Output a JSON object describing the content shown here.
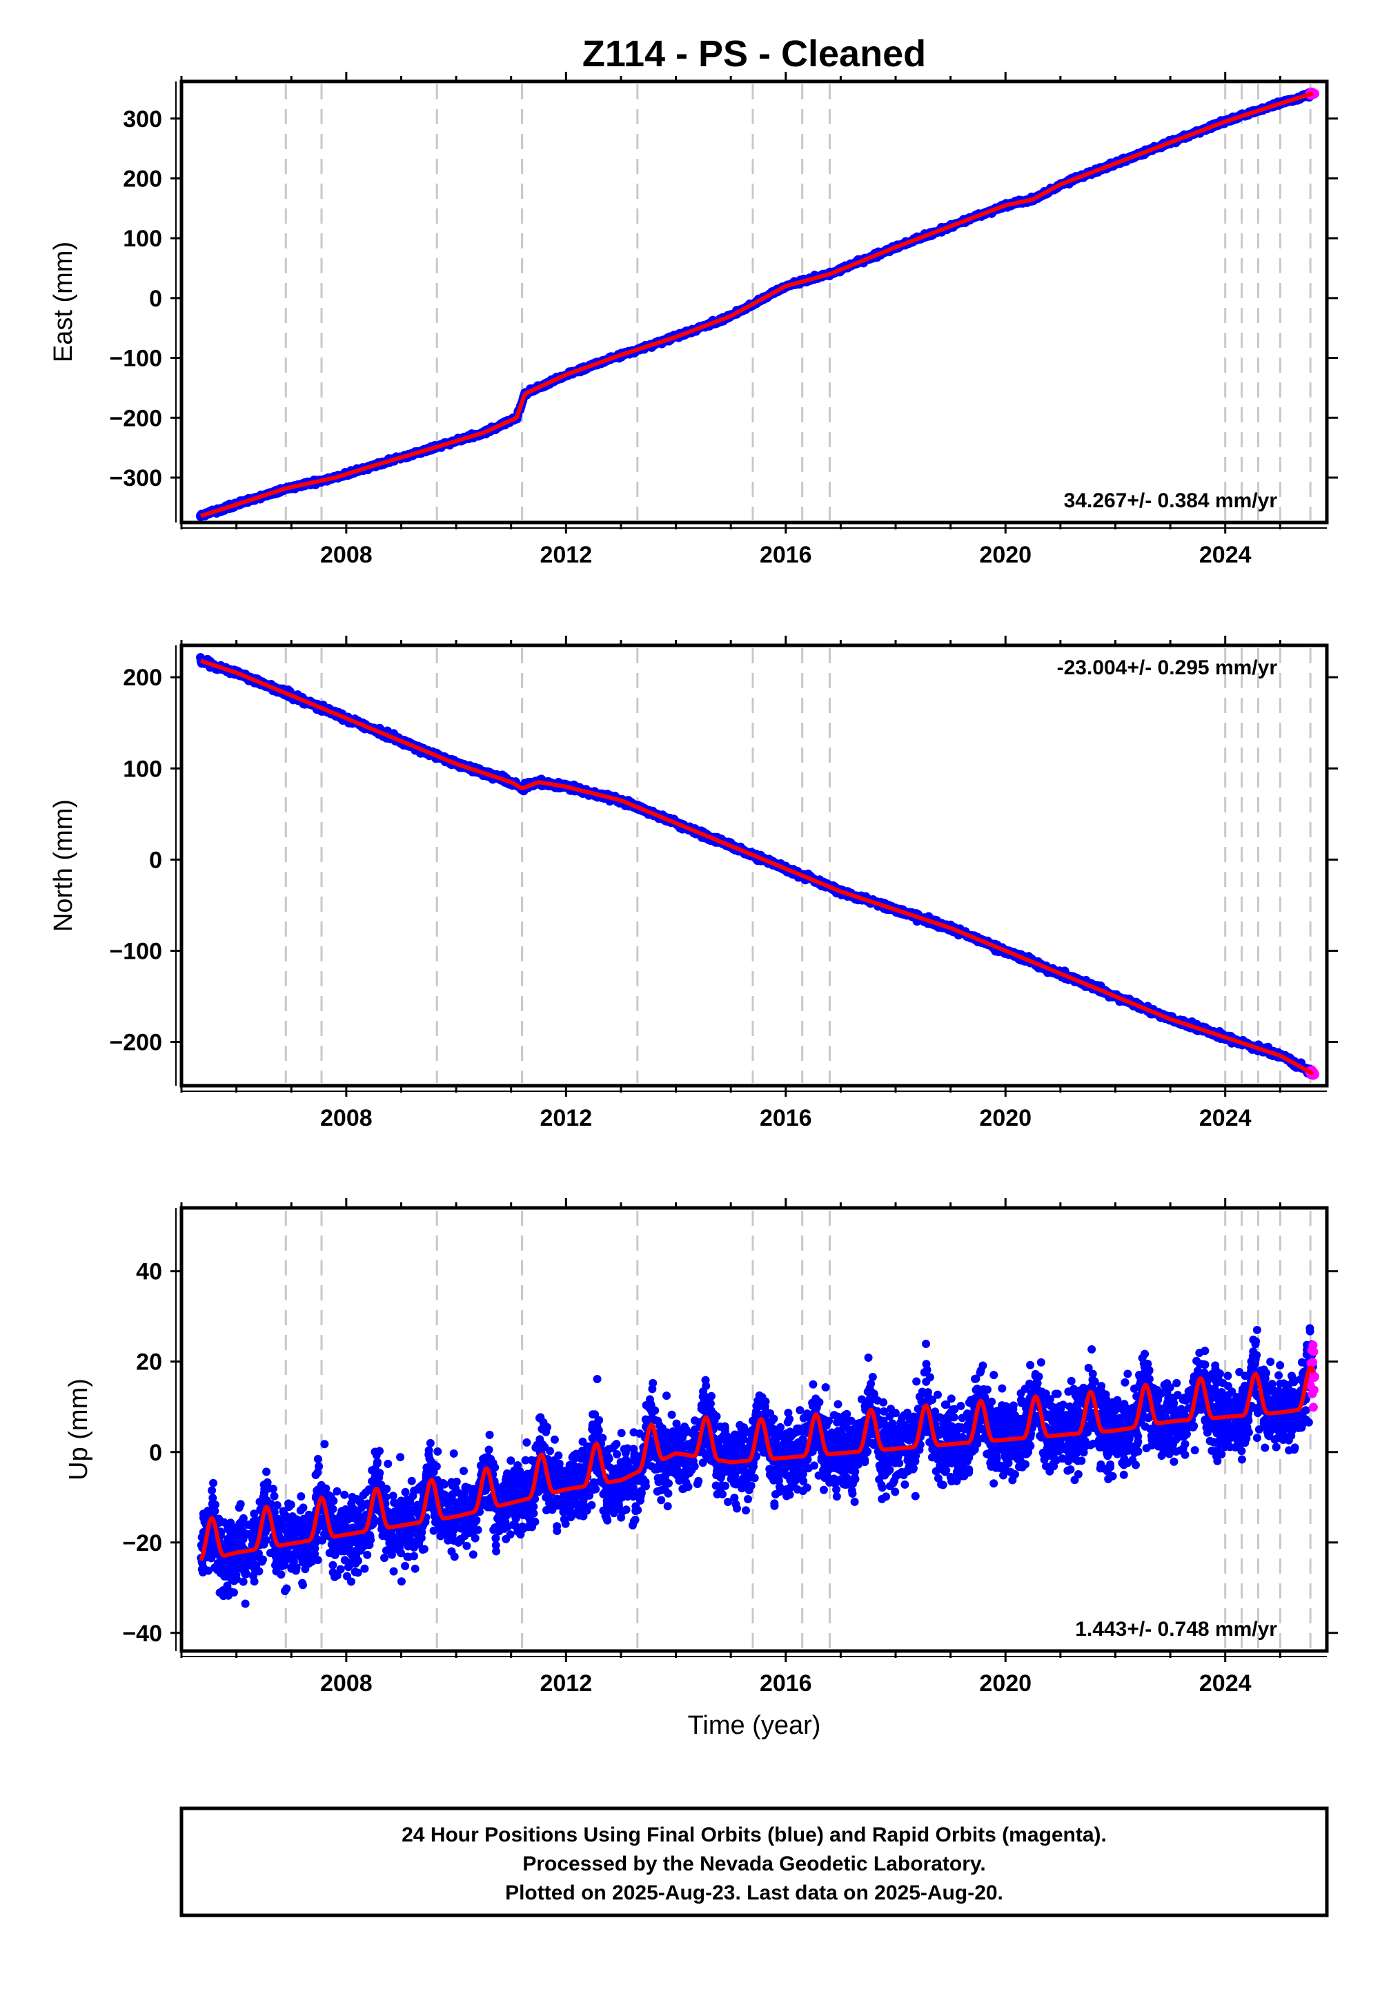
{
  "title": "Z114  - PS - Cleaned",
  "footer": {
    "lines": [
      "24 Hour Positions Using Final Orbits (blue) and Rapid Orbits (magenta).",
      "Processed by the Nevada Geodetic Laboratory.",
      "Plotted on 2025-Aug-23. Last data on 2025-Aug-20."
    ]
  },
  "colors": {
    "final_orbits": "#0000ff",
    "rapid_orbits": "#ff00ff",
    "model_fit": "#ff0000",
    "event_lines": "#c8c8c8",
    "frame": "#000000"
  },
  "chart_data": [
    {
      "type": "scatter",
      "id": "east",
      "ylabel": "East (mm)",
      "xlabel": "",
      "xlim": [
        2005.0,
        2025.85
      ],
      "ylim": [
        -375,
        362
      ],
      "xticks": [
        2008,
        2012,
        2016,
        2020,
        2024
      ],
      "yticks": [
        -300,
        -200,
        -100,
        0,
        100,
        200,
        300
      ],
      "rate_label": "34.267+/- 0.384 mm/yr",
      "rate_position": "bottom-right",
      "grid": false,
      "series": [
        {
          "points": [
            [
              2005.35,
              -364
            ],
            [
              2006.0,
              -345
            ],
            [
              2006.9,
              -318
            ],
            [
              2007.8,
              -300
            ],
            [
              2008.5,
              -280
            ],
            [
              2009.6,
              -250
            ],
            [
              2010.5,
              -225
            ],
            [
              2011.1,
              -200
            ],
            [
              2011.25,
              -160
            ],
            [
              2012.0,
              -128
            ],
            [
              2013.0,
              -95
            ],
            [
              2014.0,
              -65
            ],
            [
              2015.0,
              -30
            ],
            [
              2016.0,
              20
            ],
            [
              2016.8,
              40
            ],
            [
              2018.0,
              85
            ],
            [
              2019.0,
              120
            ],
            [
              2020.0,
              155
            ],
            [
              2020.5,
              165
            ],
            [
              2021.0,
              190
            ],
            [
              2022.0,
              225
            ],
            [
              2023.0,
              260
            ],
            [
              2024.0,
              295
            ],
            [
              2025.0,
              325
            ],
            [
              2025.6,
              342
            ]
          ]
        }
      ],
      "vlines": [
        2006.9,
        2007.55,
        2009.65,
        2011.2,
        2013.3,
        2015.4,
        2016.3,
        2016.8,
        2024.0,
        2024.3,
        2024.6,
        2025.0,
        2025.55
      ]
    },
    {
      "type": "scatter",
      "id": "north",
      "ylabel": "North (mm)",
      "xlabel": "",
      "xlim": [
        2005.0,
        2025.85
      ],
      "ylim": [
        -248,
        235
      ],
      "xticks": [
        2008,
        2012,
        2016,
        2020,
        2024
      ],
      "yticks": [
        -200,
        -100,
        0,
        100,
        200
      ],
      "rate_label": "-23.004+/- 0.295 mm/yr",
      "rate_position": "top-right",
      "grid": false,
      "series": [
        {
          "points": [
            [
              2005.35,
              218
            ],
            [
              2006.0,
              205
            ],
            [
              2007.0,
              180
            ],
            [
              2008.0,
              155
            ],
            [
              2009.0,
              130
            ],
            [
              2010.0,
              105
            ],
            [
              2011.0,
              85
            ],
            [
              2011.2,
              78
            ],
            [
              2011.5,
              85
            ],
            [
              2012.0,
              80
            ],
            [
              2013.0,
              65
            ],
            [
              2014.0,
              40
            ],
            [
              2015.0,
              15
            ],
            [
              2016.0,
              -10
            ],
            [
              2017.0,
              -35
            ],
            [
              2018.0,
              -55
            ],
            [
              2019.0,
              -75
            ],
            [
              2020.0,
              -100
            ],
            [
              2021.0,
              -125
            ],
            [
              2022.0,
              -150
            ],
            [
              2023.0,
              -175
            ],
            [
              2024.0,
              -195
            ],
            [
              2025.0,
              -215
            ],
            [
              2025.6,
              -235
            ]
          ]
        }
      ],
      "vlines": [
        2006.9,
        2007.55,
        2009.65,
        2011.2,
        2013.3,
        2015.4,
        2016.3,
        2016.8,
        2024.0,
        2024.3,
        2024.6,
        2025.0,
        2025.55
      ]
    },
    {
      "type": "scatter",
      "id": "up",
      "ylabel": "Up (mm)",
      "xlabel": "Time (year)",
      "xlim": [
        2005.0,
        2025.85
      ],
      "ylim": [
        -44,
        54
      ],
      "xticks": [
        2008,
        2012,
        2016,
        2020,
        2024
      ],
      "yticks": [
        -40,
        -20,
        0,
        20,
        40
      ],
      "rate_label": "1.443+/- 0.748 mm/yr",
      "rate_position": "bottom-right",
      "grid": false,
      "series": [
        {
          "seasonal_amplitude_mm": 9,
          "noise_mm": 7,
          "trend_points": [
            [
              2005.35,
              -22
            ],
            [
              2006.0,
              -20
            ],
            [
              2007.0,
              -18
            ],
            [
              2008.0,
              -16
            ],
            [
              2009.0,
              -14
            ],
            [
              2010.0,
              -12
            ],
            [
              2011.0,
              -9
            ],
            [
              2012.0,
              -6
            ],
            [
              2013.0,
              -4
            ],
            [
              2014.0,
              2
            ],
            [
              2015.0,
              0
            ],
            [
              2016.0,
              1
            ],
            [
              2017.0,
              2
            ],
            [
              2018.0,
              3
            ],
            [
              2019.0,
              4
            ],
            [
              2020.0,
              5
            ],
            [
              2021.0,
              6
            ],
            [
              2022.0,
              7
            ],
            [
              2023.0,
              9
            ],
            [
              2024.0,
              10
            ],
            [
              2025.0,
              11
            ],
            [
              2025.6,
              12
            ]
          ]
        }
      ],
      "vlines": [
        2006.9,
        2007.55,
        2009.65,
        2011.2,
        2013.3,
        2015.4,
        2016.3,
        2016.8,
        2024.0,
        2024.3,
        2024.6,
        2025.0,
        2025.55
      ]
    }
  ]
}
